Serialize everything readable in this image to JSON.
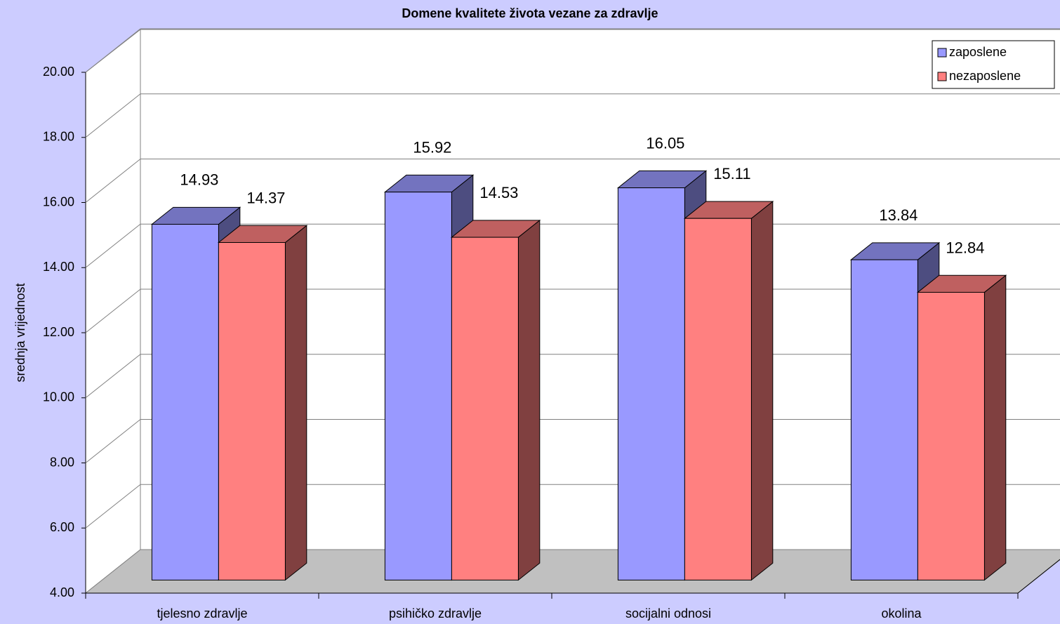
{
  "chart_data": {
    "type": "bar3d",
    "title": "Domene kvalitete života vezane za zdravlje",
    "y_label": "srednja vrijednost",
    "categories": [
      "tjelesno zdravlje",
      "psihičko zdravlje",
      "socijalni odnosi",
      "okolina"
    ],
    "series": [
      {
        "name": "zaposlene",
        "color": "#9999ff",
        "values": [
          14.93,
          15.92,
          16.05,
          13.84
        ]
      },
      {
        "name": "nezaposlene",
        "color": "#ff8080",
        "values": [
          14.37,
          14.53,
          15.11,
          12.84
        ]
      }
    ],
    "ylim": [
      4,
      20
    ],
    "yticks": [
      {
        "value": 4,
        "label": "4.00"
      },
      {
        "value": 6,
        "label": "6.00"
      },
      {
        "value": 8,
        "label": "8.00"
      },
      {
        "value": 10,
        "label": "10.00"
      },
      {
        "value": 12,
        "label": "12.00"
      },
      {
        "value": 14,
        "label": "14.00"
      },
      {
        "value": 16,
        "label": "16.00"
      },
      {
        "value": 18,
        "label": "18.00"
      },
      {
        "value": 20,
        "label": "20.00"
      }
    ],
    "grid": true,
    "legend": "top-right"
  }
}
